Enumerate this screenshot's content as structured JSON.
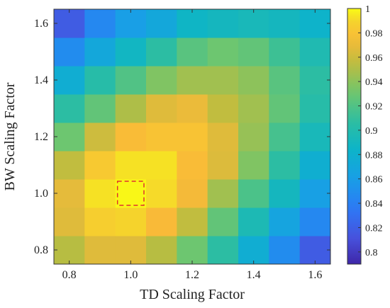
{
  "chart_data": {
    "type": "heatmap",
    "xlabel": "TD Scaling Factor",
    "ylabel": "BW Scaling Factor",
    "x": [
      0.8,
      0.9,
      1.0,
      1.1,
      1.2,
      1.3,
      1.4,
      1.5,
      1.6
    ],
    "y": [
      0.8,
      0.9,
      1.0,
      1.1,
      1.2,
      1.3,
      1.4,
      1.5,
      1.6
    ],
    "x_ticks": [
      "0.8",
      "1.0",
      "1.2",
      "1.4",
      "1.6"
    ],
    "y_ticks": [
      "0.8",
      "1.0",
      "1.2",
      "1.4",
      "1.6"
    ],
    "xlim": [
      0.75,
      1.65
    ],
    "ylim": [
      0.75,
      1.65
    ],
    "values_rows_from_y_0_8_up": [
      [
        0.953,
        0.966,
        0.966,
        0.953,
        0.93,
        0.906,
        0.876,
        0.848,
        0.818
      ],
      [
        0.966,
        0.986,
        0.989,
        0.975,
        0.956,
        0.926,
        0.896,
        0.866,
        0.845
      ],
      [
        0.968,
        0.993,
        0.999,
        0.991,
        0.973,
        0.946,
        0.918,
        0.89,
        0.862
      ],
      [
        0.956,
        0.983,
        0.993,
        0.993,
        0.976,
        0.965,
        0.936,
        0.906,
        0.878
      ],
      [
        0.93,
        0.96,
        0.976,
        0.98,
        0.98,
        0.966,
        0.943,
        0.916,
        0.893
      ],
      [
        0.906,
        0.926,
        0.95,
        0.966,
        0.97,
        0.956,
        0.946,
        0.926,
        0.903
      ],
      [
        0.876,
        0.903,
        0.92,
        0.936,
        0.946,
        0.946,
        0.94,
        0.923,
        0.906
      ],
      [
        0.848,
        0.87,
        0.888,
        0.906,
        0.923,
        0.93,
        0.926,
        0.913,
        0.898
      ],
      [
        0.818,
        0.845,
        0.86,
        0.87,
        0.886,
        0.89,
        0.893,
        0.89,
        0.883
      ]
    ],
    "highlight": {
      "x": 1.0,
      "y": 1.0,
      "style": "dashed",
      "color": "#e03030"
    },
    "colorbar": {
      "min": 0.79,
      "max": 1.0,
      "ticks": [
        "0.8",
        "0.82",
        "0.84",
        "0.86",
        "0.88",
        "0.9",
        "0.92",
        "0.94",
        "0.96",
        "0.98",
        "1"
      ],
      "tick_values": [
        0.8,
        0.82,
        0.84,
        0.86,
        0.88,
        0.9,
        0.92,
        0.94,
        0.96,
        0.98,
        1.0
      ]
    },
    "colormap": "parula",
    "grid": false
  }
}
